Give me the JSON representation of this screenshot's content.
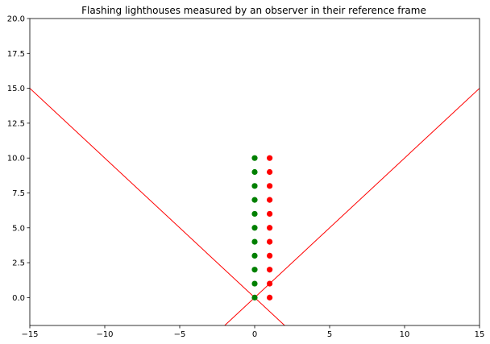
{
  "chart_data": {
    "type": "scatter",
    "title": "Flashing lighthouses measured by an observer in their reference frame",
    "xlabel": "",
    "ylabel": "",
    "xlim": [
      -15,
      15
    ],
    "ylim": [
      -2,
      20
    ],
    "x_ticks": [
      -15,
      -10,
      -5,
      0,
      5,
      10,
      15
    ],
    "x_tick_labels": [
      "−15",
      "−10",
      "−5",
      "0",
      "5",
      "10",
      "15"
    ],
    "y_ticks": [
      0,
      2.5,
      5,
      7.5,
      10,
      12.5,
      15,
      17.5,
      20
    ],
    "y_tick_labels": [
      "0.0",
      "2.5",
      "5.0",
      "7.5",
      "10.0",
      "12.5",
      "15.0",
      "17.5",
      "20.0"
    ],
    "grid": false,
    "lines": [
      {
        "color": "#ff0000",
        "x": [
          -15,
          2
        ],
        "y": [
          15,
          -2
        ]
      },
      {
        "color": "#ff0000",
        "x": [
          -2,
          15
        ],
        "y": [
          -2,
          15
        ]
      }
    ],
    "series": [
      {
        "color": "#008000",
        "x": [
          0,
          0,
          0,
          0,
          0,
          0,
          0,
          0,
          0,
          0,
          0
        ],
        "y": [
          0,
          1,
          2,
          3,
          4,
          5,
          6,
          7,
          8,
          9,
          10
        ]
      },
      {
        "color": "#ff0000",
        "x": [
          1,
          1,
          1,
          1,
          1,
          1,
          1,
          1,
          1,
          1,
          1
        ],
        "y": [
          0,
          1,
          2,
          3,
          4,
          5,
          6,
          7,
          8,
          9,
          10
        ]
      }
    ]
  }
}
